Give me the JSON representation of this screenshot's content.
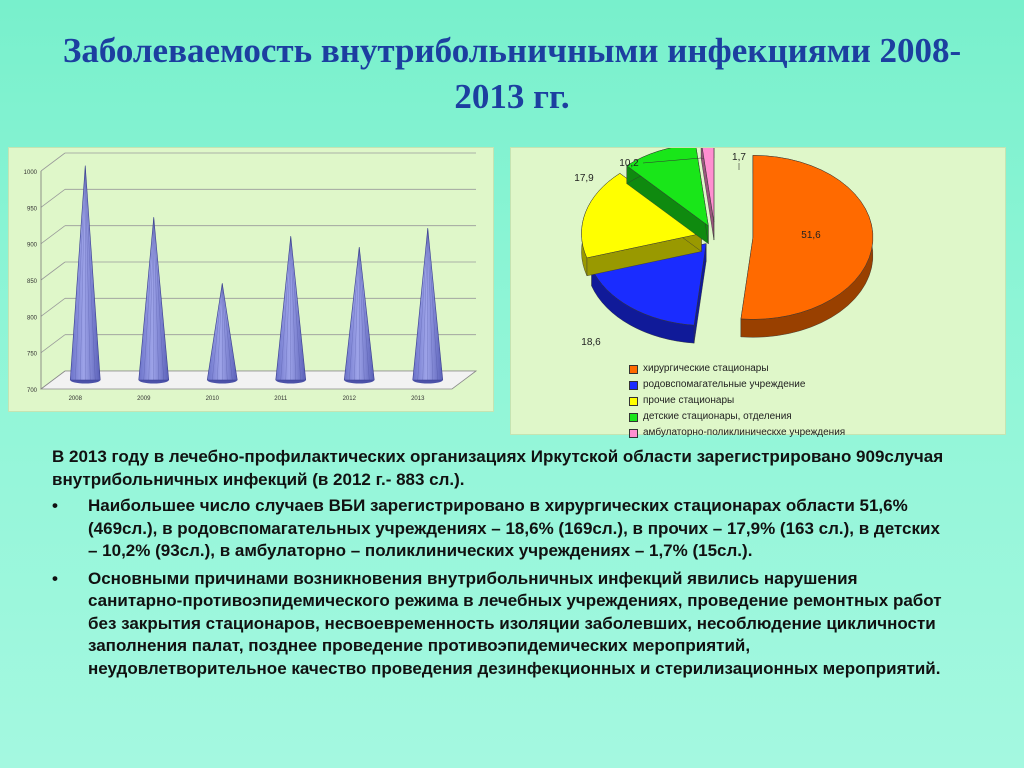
{
  "title": "Заболеваемость внутрибольничными инфекциями 2008-2013 гг.",
  "chart_data": [
    {
      "type": "bar",
      "style": "3d-cone",
      "categories": [
        "2008",
        "2009",
        "2010",
        "2011",
        "2012",
        "2013"
      ],
      "values": [
        995,
        924,
        833,
        898,
        883,
        909
      ],
      "yticks": [
        700,
        750,
        800,
        850,
        900,
        950,
        1000
      ],
      "ylim": [
        700,
        1000
      ],
      "grid": true,
      "color": "#9da3e8",
      "legend": "none"
    },
    {
      "type": "pie",
      "style": "3d-exploded",
      "labels": [
        "хирургические стационары",
        "родовспомагательные учреждение",
        "прочие стационары",
        "детские стационары, отделения",
        "амбулаторно-поликлиническхе учреждения"
      ],
      "values": [
        51.6,
        18.6,
        17.9,
        10.2,
        1.7
      ],
      "value_labels": [
        "51,6",
        "18,6",
        "17,9",
        "10,2",
        "1,7"
      ],
      "colors": [
        "#ff6a00",
        "#1a2cff",
        "#ffff00",
        "#19e619",
        "#ff8fd0"
      ],
      "legend": "bottom"
    }
  ],
  "text": {
    "intro": "В  2013 году в лечебно-профилактических организациях Иркутской области зарегистрировано 909случая внутрибольничных инфекций (в 2012 г.- 883 сл.).",
    "bullets": [
      "Наибольшее число случаев ВБИ зарегистрировано в хирургических стационарах области 51,6% (469сл.), в родовспомагательных учреждениях – 18,6% (169сл.), в прочих – 17,9% (163 сл.), в детских – 10,2% (93сл.), в амбулаторно – поликлинических учреждениях – 1,7% (15сл.).",
      " Основными причинами возникновения внутрибольничных инфекций явились нарушения санитарно-противоэпидемического режима в лечебных учреждениях, проведение ремонтных работ без закрытия стационаров, несвоевременность изоляции заболевших, несоблюдение цикличности заполнения палат, позднее проведение противоэпидемических мероприятий, неудовлетворительное качество проведения дезинфекционных и стерилизационных мероприятий."
    ]
  }
}
